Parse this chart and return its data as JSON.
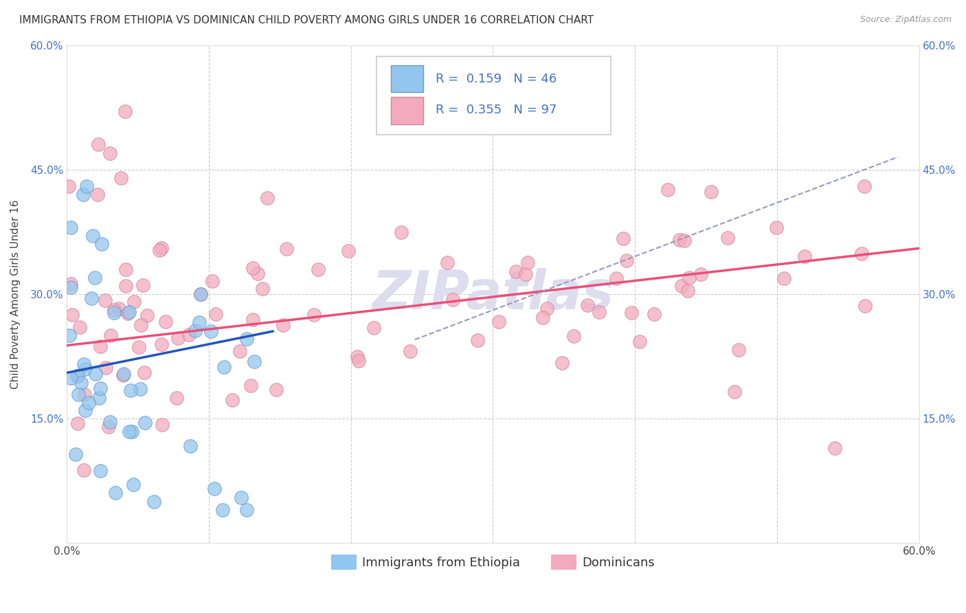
{
  "title": "IMMIGRANTS FROM ETHIOPIA VS DOMINICAN CHILD POVERTY AMONG GIRLS UNDER 16 CORRELATION CHART",
  "source": "Source: ZipAtlas.com",
  "ylabel": "Child Poverty Among Girls Under 16",
  "xlim": [
    0.0,
    0.6
  ],
  "ylim": [
    0.0,
    0.6
  ],
  "ethiopia_color": "#93C6EE",
  "dominican_color": "#F4AABE",
  "ethiopia_edge_color": "#6699CC",
  "dominican_edge_color": "#CC8899",
  "ethiopia_R": 0.159,
  "ethiopia_N": 46,
  "dominican_R": 0.355,
  "dominican_N": 97,
  "eth_line_color": "#2255BB",
  "dom_line_color": "#E8507A",
  "dash_line_color": "#9999BB",
  "legend_text_color": "#4472C4",
  "right_tick_color": "#4472C4",
  "bg_color": "#FFFFFF",
  "grid_color": "#CCCCCC",
  "watermark_text": "ZIPatlas",
  "watermark_color": "#DDDDEE",
  "title_fontsize": 11,
  "axis_label_fontsize": 11,
  "tick_fontsize": 11,
  "legend_fontsize": 13,
  "eth_line_x": [
    0.0,
    0.145
  ],
  "eth_line_y": [
    0.205,
    0.255
  ],
  "dom_line_x": [
    0.0,
    0.6
  ],
  "dom_line_y": [
    0.238,
    0.355
  ],
  "dash_line_x": [
    0.245,
    0.585
  ],
  "dash_line_y": [
    0.245,
    0.465
  ]
}
